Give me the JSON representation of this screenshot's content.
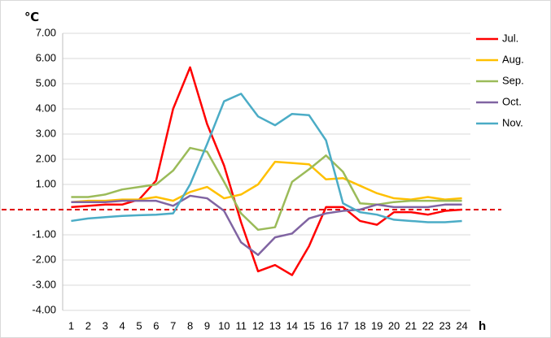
{
  "chart_data": {
    "type": "line",
    "y_label": "℃",
    "x_label": "h",
    "categories": [
      "1",
      "2",
      "3",
      "4",
      "5",
      "6",
      "7",
      "8",
      "9",
      "10",
      "11",
      "12",
      "13",
      "14",
      "15",
      "16",
      "17",
      "18",
      "19",
      "20",
      "21",
      "22",
      "23",
      "24"
    ],
    "series": [
      {
        "name": "Jul.",
        "color": "#ff0000",
        "values": [
          0.1,
          0.15,
          0.2,
          0.2,
          0.4,
          1.15,
          4.0,
          5.65,
          3.4,
          1.75,
          -0.5,
          -2.45,
          -2.2,
          -2.6,
          -1.45,
          0.1,
          0.1,
          -0.45,
          -0.6,
          -0.1,
          -0.1,
          -0.2,
          -0.05,
          0.0
        ]
      },
      {
        "name": "Aug.",
        "color": "#ffc000",
        "values": [
          0.3,
          0.35,
          0.35,
          0.4,
          0.4,
          0.5,
          0.35,
          0.7,
          0.9,
          0.45,
          0.6,
          1.0,
          1.9,
          1.85,
          1.8,
          1.2,
          1.25,
          0.95,
          0.65,
          0.45,
          0.4,
          0.5,
          0.4,
          0.45
        ]
      },
      {
        "name": "Sep.",
        "color": "#9bbb59",
        "values": [
          0.5,
          0.5,
          0.6,
          0.8,
          0.9,
          1.0,
          1.55,
          2.45,
          2.3,
          1.1,
          -0.15,
          -0.8,
          -0.7,
          1.1,
          1.6,
          2.15,
          1.5,
          0.25,
          0.2,
          0.3,
          0.35,
          0.35,
          0.35,
          0.35
        ]
      },
      {
        "name": "Oct.",
        "color": "#8064a2",
        "values": [
          0.3,
          0.3,
          0.3,
          0.35,
          0.35,
          0.35,
          0.15,
          0.55,
          0.45,
          -0.05,
          -1.3,
          -1.8,
          -1.1,
          -0.95,
          -0.35,
          -0.15,
          -0.05,
          0.0,
          0.2,
          0.1,
          0.1,
          0.1,
          0.2,
          0.2
        ]
      },
      {
        "name": "Nov.",
        "color": "#4bacc6",
        "values": [
          -0.45,
          -0.35,
          -0.3,
          -0.25,
          -0.22,
          -0.2,
          -0.15,
          1.0,
          2.6,
          4.3,
          4.6,
          3.7,
          3.35,
          3.8,
          3.75,
          2.75,
          0.25,
          -0.1,
          -0.2,
          -0.4,
          -0.45,
          -0.5,
          -0.5,
          -0.45
        ]
      }
    ],
    "ylim": [
      -4,
      7
    ],
    "yticks": [
      {
        "value": -4,
        "label": "-4.00"
      },
      {
        "value": -3,
        "label": "-3.00"
      },
      {
        "value": -2,
        "label": "-2.00"
      },
      {
        "value": -1,
        "label": "-1.00"
      },
      {
        "value": 1,
        "label": "1.00"
      },
      {
        "value": 2,
        "label": "2.00"
      },
      {
        "value": 3,
        "label": "3.00"
      },
      {
        "value": 4,
        "label": "4.00"
      },
      {
        "value": 5,
        "label": "5.00"
      },
      {
        "value": 6,
        "label": "6.00"
      },
      {
        "value": 7,
        "label": "7.00"
      }
    ],
    "grid": true,
    "legend": "right"
  }
}
